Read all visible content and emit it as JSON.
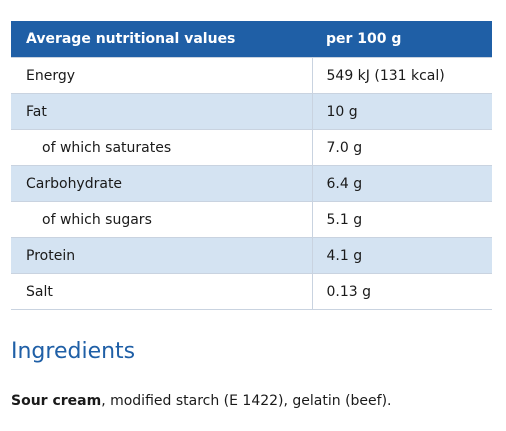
{
  "table": {
    "header": {
      "nutrient": "Average nutritional values",
      "amount": "per 100 g"
    },
    "rows": [
      {
        "label": "Energy",
        "value": "549 kJ (131 kcal)"
      },
      {
        "label": "Fat",
        "value": "10 g"
      },
      {
        "label": "of which saturates",
        "value": "7.0 g"
      },
      {
        "label": "Carbohydrate",
        "value": "6.4 g"
      },
      {
        "label": "of which sugars",
        "value": "5.1 g"
      },
      {
        "label": "Protein",
        "value": "4.1 g"
      },
      {
        "label": "Salt",
        "value": "0.13 g"
      }
    ]
  },
  "ingredients": {
    "heading": "Ingredients",
    "bold_part": "Sour cream",
    "rest": ", modified starch (E 1422), gelatin (beef)."
  },
  "colors": {
    "header_bg": "#1f5fa6",
    "row_shade": "#d4e3f2",
    "heading": "#1f5fa6"
  }
}
